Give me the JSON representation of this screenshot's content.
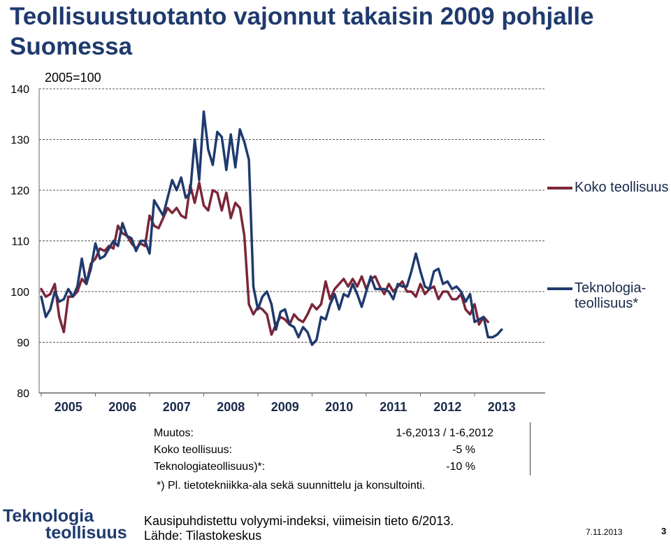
{
  "title": "Teollisuustuotanto vajonnut takaisin 2009 pohjalle Suomessa",
  "chart_data": {
    "type": "line",
    "title": "Teollisuustuotanto vajonnut takaisin 2009 pohjalle Suomessa",
    "unit_label": "2005=100",
    "xlabel": "",
    "ylabel": "",
    "ylim": [
      80,
      140
    ],
    "yticks": [
      "80",
      "90",
      "100",
      "110",
      "120",
      "130",
      "140"
    ],
    "x_tick_labels": [
      "2005",
      "2006",
      "2007",
      "2008",
      "2009",
      "2010",
      "2011",
      "2012",
      "2013"
    ],
    "x_start": 2005.0,
    "x_step": 0.08333,
    "grid": "horizontal-dashed",
    "legend_position": "right",
    "series": [
      {
        "name": "Koko teollisuus",
        "color": "#7b2638",
        "values": [
          100.5,
          99.0,
          99.5,
          101.5,
          95.0,
          92.0,
          99.0,
          99.0,
          100.0,
          102.5,
          101.5,
          105.5,
          106.5,
          108.5,
          108.0,
          109.0,
          108.5,
          113.0,
          111.5,
          111.0,
          109.5,
          108.5,
          109.5,
          109.0,
          115.0,
          113.0,
          112.5,
          114.5,
          116.5,
          115.5,
          116.5,
          115.0,
          114.5,
          121.0,
          117.5,
          121.5,
          117.0,
          116.0,
          120.0,
          119.5,
          116.0,
          119.5,
          114.5,
          117.5,
          116.5,
          111.0,
          97.5,
          95.5,
          97.0,
          96.5,
          95.5,
          91.5,
          93.5,
          95.0,
          94.5,
          93.5,
          95.5,
          94.5,
          94.0,
          95.5,
          97.5,
          96.5,
          97.5,
          102.0,
          98.5,
          100.5,
          101.5,
          102.5,
          101.0,
          102.5,
          101.0,
          103.0,
          100.5,
          102.5,
          103.0,
          101.0,
          99.5,
          101.5,
          100.0,
          101.0,
          102.0,
          100.0,
          100.0,
          99.0,
          101.5,
          99.5,
          100.5,
          101.0,
          98.5,
          100.0,
          100.0,
          98.5,
          98.5,
          99.5,
          96.5,
          95.5,
          97.5,
          93.5,
          95.0,
          94.0
        ]
      },
      {
        "name": "Teknologia-teollisuus*",
        "color": "#1f3a6e",
        "values": [
          99.0,
          95.0,
          96.5,
          100.0,
          98.0,
          98.5,
          100.5,
          99.0,
          101.0,
          106.5,
          101.5,
          104.5,
          109.5,
          106.5,
          107.0,
          108.5,
          110.0,
          109.0,
          113.5,
          111.0,
          110.5,
          108.0,
          110.0,
          110.0,
          107.5,
          118.0,
          116.5,
          115.0,
          118.5,
          122.0,
          120.0,
          122.5,
          118.5,
          119.5,
          130.0,
          122.0,
          135.5,
          128.0,
          125.0,
          131.5,
          130.5,
          124.0,
          131.0,
          124.5,
          132.0,
          129.5,
          126.0,
          101.0,
          96.5,
          99.0,
          100.0,
          97.5,
          92.5,
          96.0,
          96.5,
          93.5,
          93.0,
          91.0,
          93.0,
          92.0,
          89.5,
          90.5,
          95.0,
          94.5,
          97.5,
          99.5,
          96.5,
          99.5,
          99.0,
          101.5,
          99.5,
          97.0,
          100.0,
          103.0,
          100.5,
          100.5,
          100.5,
          100.0,
          98.5,
          101.5,
          101.0,
          101.0,
          104.0,
          107.5,
          104.0,
          101.0,
          100.5,
          104.0,
          104.5,
          101.5,
          102.0,
          100.5,
          101.0,
          100.0,
          98.0,
          99.5,
          94.0,
          94.5,
          95.0,
          91.0,
          91.0,
          91.5,
          92.5
        ]
      }
    ]
  },
  "change_table": {
    "header_label": "Muutos:",
    "header_value": "1-6,2013 / 1-6,2012",
    "rows": [
      {
        "label": "Koko teollisuus:",
        "value": "-5 %"
      },
      {
        "label": "Teknologiateollisuus)*:",
        "value": "-10 %"
      }
    ]
  },
  "footnote": "*) Pl. tietotekniikka-ala sekä suunnittelu ja konsultointi.",
  "source_line1": "Kausipuhdistettu volyymi-indeksi, viimeisin tieto 6/2013.",
  "source_line2": "Lähde: Tilastokeskus",
  "logo_line1": "Teknologia",
  "logo_line2": "teollisuus",
  "date": "7.11.2013",
  "page_number": "3"
}
